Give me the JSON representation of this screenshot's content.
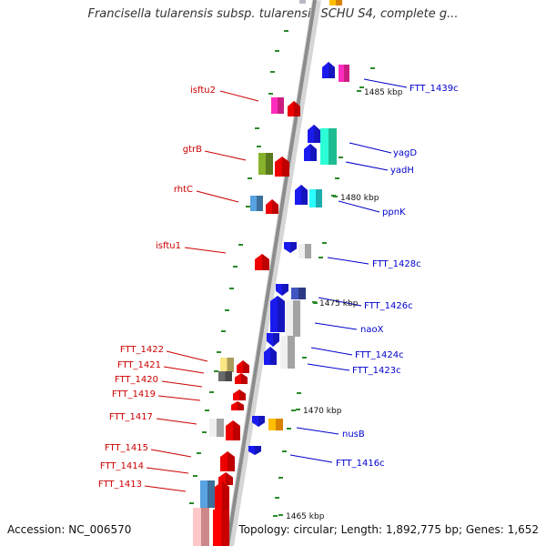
{
  "title": "Francisella tularensis subsp. tularensis SCHU S4, complete g...",
  "footer": {
    "accession": "Accession: NC_006570",
    "topology": "Topology: circular; Length: 1,892,775 bp; Genes: 1,652"
  },
  "colors": {
    "backbone": "#8c8c8c",
    "left_label": "#cc0000",
    "right_label": "#0000cc",
    "tick": "#2a8a2a"
  },
  "kbp_labels": [
    "1485 kbp",
    "1480 kbp",
    "1475 kbp",
    "1470 kbp",
    "1465 kbp"
  ],
  "left_labels": [
    "isftu2",
    "gtrB",
    "rhtC",
    "isftu1",
    "FTT_1422",
    "FTT_1421",
    "FTT_1420",
    "FTT_1419",
    "FTT_1417",
    "FTT_1415",
    "FTT_1414",
    "FTT_1413"
  ],
  "right_labels": [
    "FTT_1439c",
    "yagD",
    "yadH",
    "ppnK",
    "FTT_1428c",
    "FTT_1426c",
    "naoX",
    "FTT_1424c",
    "FTT_1423c",
    "nusB",
    "FTT_1416c"
  ]
}
